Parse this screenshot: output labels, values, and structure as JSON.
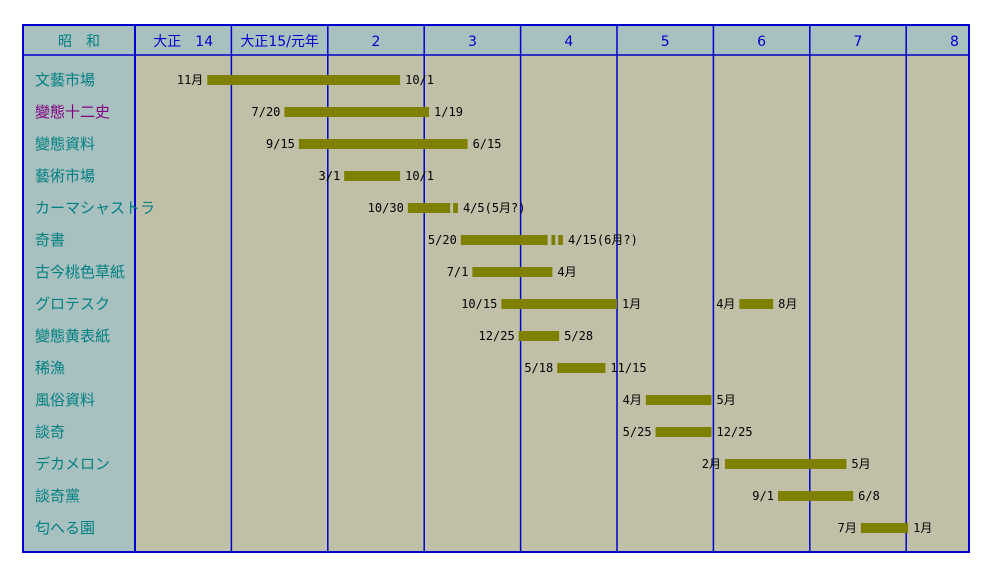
{
  "chart_data": {
    "type": "gantt",
    "header_label": "昭　和",
    "year_columns": [
      "大正　14",
      "大正15/元年",
      "2",
      "3",
      "4",
      "5",
      "6",
      "7",
      "8"
    ],
    "colors": {
      "background": "#c0c0a8",
      "label_column": "#a8c0c0",
      "grid": "#0000cc",
      "bar": "#808000",
      "label_text": "#008080",
      "label_highlight": "#800080",
      "header_text": "#0000cc"
    },
    "rows": [
      {
        "name": "文藝市場",
        "highlight": false,
        "bars": [
          {
            "start": 0.75,
            "end": 2.75,
            "start_label": "11月",
            "end_label": "10/1"
          }
        ]
      },
      {
        "name": "變態十二史",
        "highlight": true,
        "bars": [
          {
            "start": 1.55,
            "end": 3.05,
            "start_label": "7/20",
            "end_label": "1/19"
          }
        ]
      },
      {
        "name": "變態資料",
        "highlight": false,
        "bars": [
          {
            "start": 1.7,
            "end": 3.45,
            "start_label": "9/15",
            "end_label": "6/15"
          }
        ]
      },
      {
        "name": "藝術市場",
        "highlight": false,
        "bars": [
          {
            "start": 2.17,
            "end": 2.75,
            "start_label": "3/1",
            "end_label": "10/1"
          }
        ]
      },
      {
        "name": "カーマシャストラ",
        "highlight": false,
        "bars": [
          {
            "start": 2.83,
            "end": 3.27,
            "start_label": "10/30",
            "end_label": "",
            "solid": true
          },
          {
            "start": 3.3,
            "end": 3.35,
            "start_label": "",
            "end_label": "4/5(5月?)",
            "solid": true
          }
        ]
      },
      {
        "name": "奇書",
        "highlight": false,
        "bars": [
          {
            "start": 3.38,
            "end": 4.28,
            "start_label": "5/20",
            "end_label": "",
            "solid": true
          },
          {
            "start": 4.32,
            "end": 4.36,
            "start_label": "",
            "end_label": "",
            "solid": true
          },
          {
            "start": 4.39,
            "end": 4.44,
            "start_label": "",
            "end_label": "4/15(6月?)",
            "solid": true
          }
        ]
      },
      {
        "name": "古今桃色草紙",
        "highlight": false,
        "bars": [
          {
            "start": 3.5,
            "end": 4.33,
            "start_label": "7/1",
            "end_label": "4月"
          }
        ]
      },
      {
        "name": "グロテスク",
        "highlight": false,
        "bars": [
          {
            "start": 3.8,
            "end": 5.0,
            "start_label": "10/15",
            "end_label": "1月"
          },
          {
            "start": 6.27,
            "end": 6.62,
            "start_label": "4月",
            "end_label": "8月"
          }
        ]
      },
      {
        "name": "變態黄表紙",
        "highlight": false,
        "bars": [
          {
            "start": 3.98,
            "end": 4.4,
            "start_label": "12/25",
            "end_label": "5/28"
          }
        ]
      },
      {
        "name": "稀漁",
        "highlight": false,
        "bars": [
          {
            "start": 4.38,
            "end": 4.88,
            "start_label": "5/18",
            "end_label": "11/15"
          }
        ]
      },
      {
        "name": "風俗資料",
        "highlight": false,
        "bars": [
          {
            "start": 5.3,
            "end": 5.98,
            "start_label": "4月",
            "end_label": "5月"
          }
        ]
      },
      {
        "name": "談奇",
        "highlight": false,
        "bars": [
          {
            "start": 5.4,
            "end": 5.98,
            "start_label": "5/25",
            "end_label": "12/25"
          }
        ]
      },
      {
        "name": "デカメロン",
        "highlight": false,
        "bars": [
          {
            "start": 6.12,
            "end": 7.38,
            "start_label": "2月",
            "end_label": "5月"
          }
        ]
      },
      {
        "name": "談奇黨",
        "highlight": false,
        "bars": [
          {
            "start": 6.67,
            "end": 7.45,
            "start_label": "9/1",
            "end_label": "6/8"
          }
        ]
      },
      {
        "name": "匂へる園",
        "highlight": false,
        "bars": [
          {
            "start": 7.53,
            "end": 8.02,
            "start_label": "7月",
            "end_label": "1月"
          }
        ]
      }
    ]
  }
}
